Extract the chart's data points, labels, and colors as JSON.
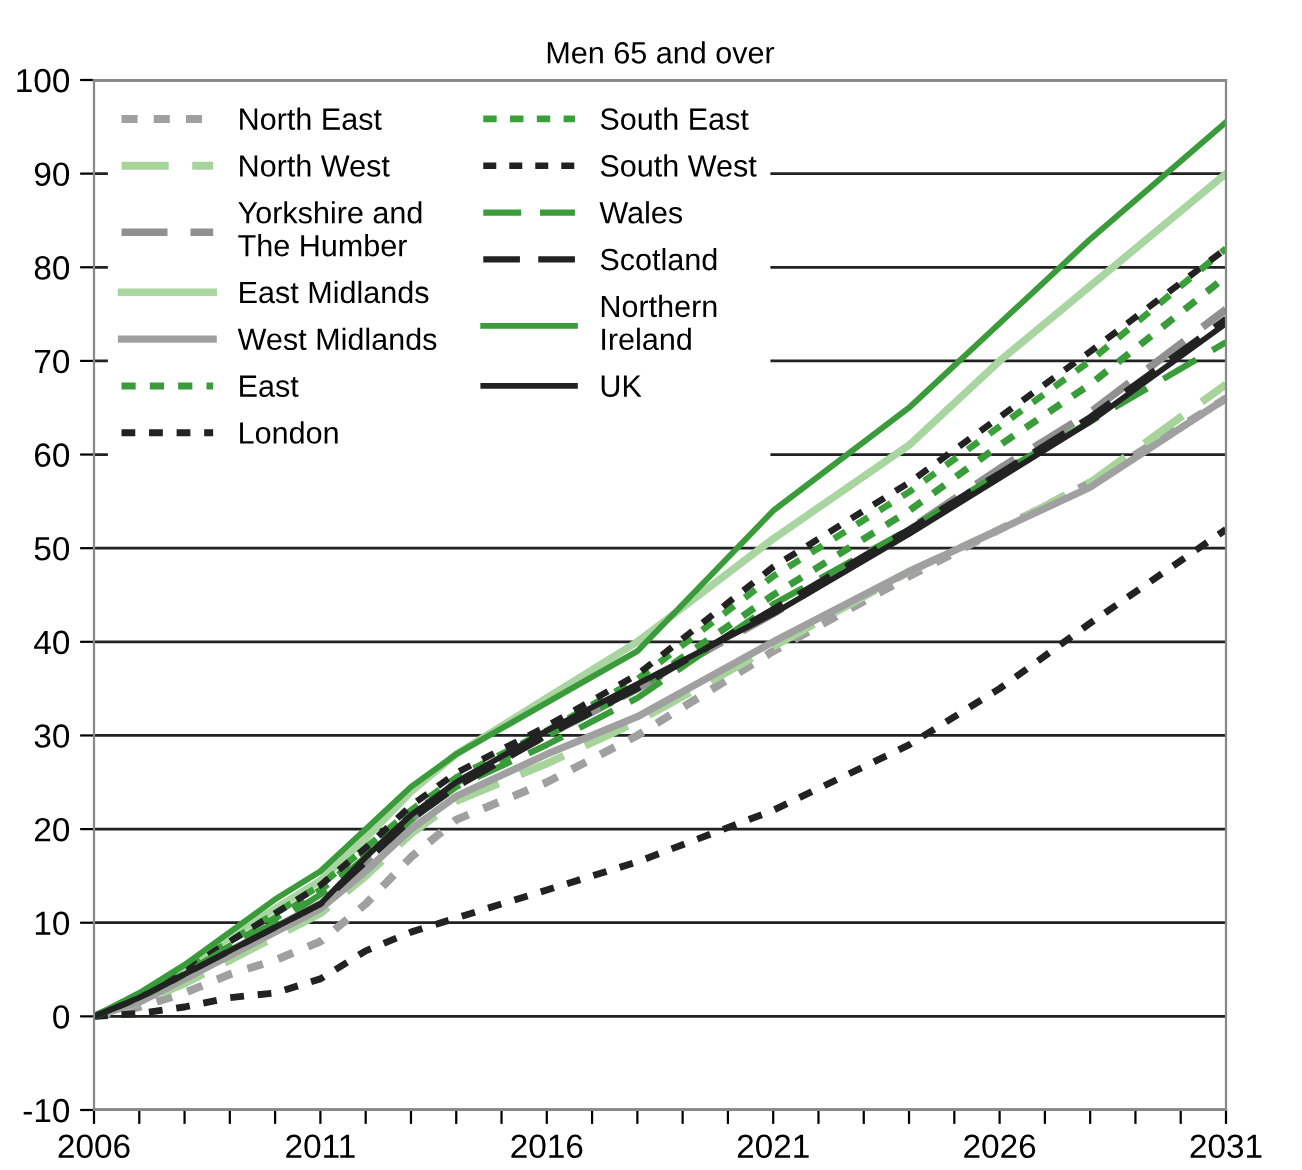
{
  "chart_data": {
    "type": "line",
    "title": "Men 65 and over",
    "x": [
      2006,
      2007,
      2008,
      2009,
      2010,
      2011,
      2012,
      2013,
      2014,
      2016,
      2018,
      2021,
      2024,
      2026,
      2028,
      2031
    ],
    "xlim": [
      2006,
      2031
    ],
    "xticks": [
      2006,
      {
        "value": 2007,
        "label": null
      },
      {
        "value": 2008,
        "label": null
      },
      {
        "value": 2009,
        "label": null
      },
      {
        "value": 2010,
        "label": null
      },
      2011,
      {
        "value": 2012,
        "label": null
      },
      {
        "value": 2013,
        "label": null
      },
      {
        "value": 2014,
        "label": null
      },
      {
        "value": 2015,
        "label": null
      },
      2016,
      {
        "value": 2017,
        "label": null
      },
      {
        "value": 2018,
        "label": null
      },
      {
        "value": 2019,
        "label": null
      },
      {
        "value": 2020,
        "label": null
      },
      2021,
      {
        "value": 2022,
        "label": null
      },
      {
        "value": 2023,
        "label": null
      },
      {
        "value": 2024,
        "label": null
      },
      {
        "value": 2025,
        "label": null
      },
      2026,
      {
        "value": 2027,
        "label": null
      },
      {
        "value": 2028,
        "label": null
      },
      {
        "value": 2029,
        "label": null
      },
      {
        "value": 2030,
        "label": null
      },
      2031
    ],
    "ylim": [
      -10,
      100
    ],
    "yticks": [
      -10,
      0,
      10,
      20,
      30,
      40,
      50,
      60,
      70,
      80,
      90,
      100
    ],
    "grid": "y",
    "legend": "top left",
    "series": [
      {
        "name": "North East",
        "color": "#a0a0a0",
        "line_style": "dotted",
        "values": [
          0,
          1,
          2.5,
          4.5,
          6,
          8,
          12,
          17,
          21,
          25,
          30,
          39,
          47,
          52,
          57,
          66
        ]
      },
      {
        "name": "North West",
        "color": "#a6d49a",
        "line_style": "dashed",
        "values": [
          0,
          1.5,
          3.5,
          6,
          8.5,
          11,
          15,
          19.5,
          23,
          27,
          31.5,
          39.5,
          47.5,
          52,
          57,
          67.5
        ]
      },
      {
        "name": "Yorkshire and\nThe Humber",
        "color": "#909090",
        "line_style": "dashed",
        "values": [
          0,
          2,
          4.5,
          7,
          9.5,
          12,
          16.5,
          21,
          25,
          30,
          35,
          43,
          52,
          58.5,
          64.5,
          75.5
        ]
      },
      {
        "name": "East Midlands",
        "color": "#a8d5a0",
        "line_style": "solid",
        "values": [
          0,
          2,
          5,
          8.5,
          11.5,
          14.5,
          19,
          24,
          28,
          34,
          40,
          51,
          61,
          70,
          78,
          90
        ]
      },
      {
        "name": "West Midlands",
        "color": "#a0a0a0",
        "line_style": "solid",
        "values": [
          0,
          1.5,
          4,
          6.5,
          9,
          11.5,
          15.5,
          20,
          23.5,
          28,
          32,
          40,
          47.5,
          52,
          56.5,
          66
        ]
      },
      {
        "name": "East",
        "color": "#3a9b3a",
        "line_style": "dotted",
        "values": [
          0,
          2,
          4.5,
          7.5,
          10.5,
          13.5,
          17.5,
          21.5,
          25,
          30,
          35,
          45,
          54,
          61,
          67.5,
          79
        ]
      },
      {
        "name": "London",
        "color": "#222222",
        "line_style": "dotted",
        "values": [
          0,
          0.3,
          1,
          2,
          2.5,
          4,
          7,
          9,
          10.5,
          13.5,
          16.5,
          22,
          29,
          35,
          42,
          52
        ]
      },
      {
        "name": "South East",
        "color": "#3aa03a",
        "line_style": "dotted",
        "values": [
          0,
          2,
          5,
          8,
          11,
          14,
          18,
          22,
          25.5,
          30.5,
          36,
          47,
          56,
          63,
          70,
          82
        ]
      },
      {
        "name": "South West",
        "color": "#222222",
        "line_style": "dotted",
        "values": [
          0,
          2,
          5,
          8,
          11,
          14,
          18,
          22.5,
          26,
          31,
          36.5,
          48,
          57,
          64,
          71,
          82
        ]
      },
      {
        "name": "Wales",
        "color": "#3a9b3a",
        "line_style": "dashed",
        "values": [
          0,
          2,
          4.5,
          7.5,
          10,
          13,
          17,
          21,
          24.5,
          29,
          34,
          44,
          52,
          58,
          63.5,
          72
        ]
      },
      {
        "name": "Scotland",
        "color": "#222222",
        "line_style": "dashed",
        "values": [
          0,
          2,
          4.5,
          7,
          9.5,
          12,
          16.5,
          21,
          24.5,
          30,
          35,
          43.5,
          52,
          58,
          64,
          74.5
        ]
      },
      {
        "name": "Northern\nIreland",
        "color": "#3a9b3a",
        "line_style": "solid",
        "values": [
          0,
          2.5,
          5.5,
          9,
          12.5,
          15.5,
          20,
          24.5,
          28,
          33.5,
          39,
          54,
          65,
          74,
          83,
          95.5
        ]
      },
      {
        "name": "UK",
        "color": "#222222",
        "line_style": "solid",
        "values": [
          0,
          2,
          4.5,
          7,
          9.5,
          12,
          17,
          21.5,
          25,
          30.5,
          35.5,
          43,
          51.5,
          57.5,
          63.5,
          74
        ]
      }
    ]
  }
}
